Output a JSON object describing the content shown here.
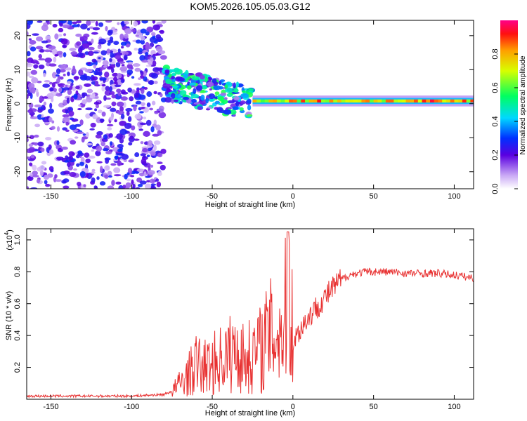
{
  "title": "KOM5.2026.105.05.03.G12",
  "chart_data": [
    {
      "type": "heatmap",
      "name": "spectrogram",
      "title": "KOM5.2026.105.05.03.G12",
      "xlabel": "Height of straight line (km)",
      "ylabel": "Frequency (Hz)",
      "xlim": [
        -165,
        112
      ],
      "ylim": [
        -25,
        24.5
      ],
      "xticks": [
        -150,
        -100,
        -50,
        0,
        50,
        100
      ],
      "yticks": [
        -20,
        -10,
        0,
        10,
        20
      ],
      "colorbar": {
        "label": "Normalized spectral amplitude",
        "range": [
          0,
          1
        ],
        "ticks": [
          "0.0",
          "0.2",
          "0.4",
          "0.6",
          "0.8"
        ]
      },
      "regions": [
        {
          "name": "noise",
          "x": [
            -165,
            -80
          ],
          "y": [
            -25,
            24.5
          ],
          "amplitude": 0.35
        },
        {
          "name": "ionospheric-signal",
          "x": [
            -80,
            -25
          ],
          "y": [
            -8,
            14
          ],
          "amplitude": 0.5
        },
        {
          "name": "steady-signal",
          "x": [
            -25,
            112
          ],
          "y_center": 0.8,
          "amplitude": 0.9
        }
      ]
    },
    {
      "type": "line",
      "name": "snr",
      "xlabel": "Height of straight line (km)",
      "ylabel": "SNR (10 * v/v)",
      "y_scale_label": "(x10",
      "y_scale_exponent": "4",
      "xlim": [
        -165,
        112
      ],
      "ylim": [
        0,
        1.07
      ],
      "xticks": [
        -150,
        -100,
        -50,
        0,
        50,
        100
      ],
      "yticks": [
        0.2,
        0.4,
        0.6,
        0.8,
        1.0
      ],
      "series": [
        {
          "name": "SNR",
          "color": "#e83030",
          "x": [
            -165,
            -100,
            -80,
            -75,
            -70,
            -65,
            -60,
            -55,
            -50,
            -45,
            -40,
            -35,
            -30,
            -25,
            -20,
            -15,
            -10,
            -5,
            -3,
            0,
            5,
            10,
            15,
            20,
            25,
            30,
            35,
            40,
            45,
            50,
            60,
            70,
            80,
            90,
            100,
            112
          ],
          "y": [
            0.02,
            0.02,
            0.03,
            0.05,
            0.1,
            0.15,
            0.22,
            0.2,
            0.22,
            0.25,
            0.28,
            0.3,
            0.25,
            0.28,
            0.32,
            0.4,
            0.42,
            0.45,
            1.05,
            0.35,
            0.45,
            0.52,
            0.58,
            0.64,
            0.7,
            0.75,
            0.78,
            0.79,
            0.8,
            0.8,
            0.8,
            0.79,
            0.79,
            0.79,
            0.78,
            0.76
          ]
        }
      ]
    }
  ],
  "colors": {
    "line": "#e83030",
    "axis": "#000000"
  }
}
